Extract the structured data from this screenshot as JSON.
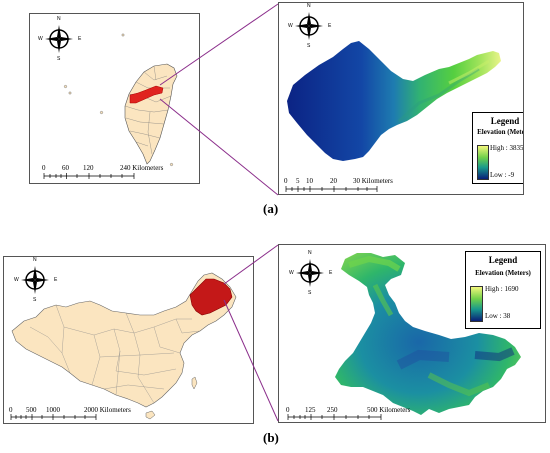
{
  "panel_a": {
    "label": "(a)",
    "overview_scale": {
      "labels": [
        "0",
        "60",
        "120",
        "240 Kilometers"
      ]
    },
    "detail_scale": {
      "labels": [
        "0",
        "5",
        "10",
        "20",
        "30 Kilometers"
      ]
    },
    "legend": {
      "title": "Legend",
      "subtitle": "Elevation (Meters)",
      "high": "High : 3835",
      "low": "Low : -9"
    },
    "compass": {
      "n": "N",
      "s": "S",
      "e": "E",
      "w": "W"
    }
  },
  "panel_b": {
    "label": "(b)",
    "overview_scale": {
      "labels": [
        "0",
        "500",
        "1000",
        "2000 Kilometers"
      ]
    },
    "detail_scale": {
      "labels": [
        "0",
        "125",
        "250",
        "500 Kilometers"
      ]
    },
    "legend": {
      "title": "Legend",
      "subtitle": "Elevation (Meters)",
      "high": "High : 1690",
      "low": "Low : 38"
    },
    "compass": {
      "n": "N",
      "s": "S",
      "e": "E",
      "w": "W"
    }
  },
  "colors": {
    "highlight": "#e0231f",
    "land": "#fbe5c0",
    "connector": "#8b2e8b",
    "ramp_high": "#f0f57a",
    "ramp_mid": "#3cb94a",
    "ramp_low": "#0a1e78"
  }
}
